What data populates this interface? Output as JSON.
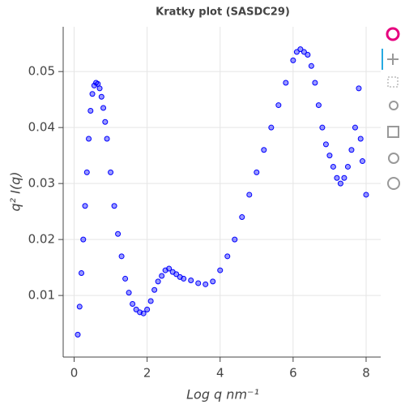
{
  "chart_data": {
    "type": "scatter",
    "title": "Kratky plot (SASDC29)",
    "x_label": "Log q nm⁻¹",
    "y_label": "q² I(q)",
    "color": "#0000ff",
    "grid": true,
    "xlim": [
      -0.3,
      8.4
    ],
    "ylim": [
      -0.001,
      0.058
    ],
    "xticks": [
      0,
      2,
      4,
      6,
      8
    ],
    "yticks": [
      0.01,
      0.02,
      0.03,
      0.04,
      0.05
    ],
    "x": [
      0.1,
      0.15,
      0.2,
      0.25,
      0.3,
      0.35,
      0.4,
      0.45,
      0.5,
      0.55,
      0.6,
      0.65,
      0.7,
      0.75,
      0.8,
      0.85,
      0.9,
      1.0,
      1.1,
      1.2,
      1.3,
      1.4,
      1.5,
      1.6,
      1.7,
      1.8,
      1.9,
      2.0,
      2.1,
      2.2,
      2.3,
      2.4,
      2.5,
      2.6,
      2.7,
      2.8,
      2.9,
      3.0,
      3.2,
      3.4,
      3.6,
      3.8,
      4.0,
      4.2,
      4.4,
      4.6,
      4.8,
      5.0,
      5.2,
      5.4,
      5.6,
      5.8,
      6.0,
      6.1,
      6.2,
      6.3,
      6.4,
      6.5,
      6.6,
      6.7,
      6.8,
      6.9,
      7.0,
      7.1,
      7.2,
      7.3,
      7.4,
      7.5,
      7.6,
      7.7,
      7.8,
      7.85,
      7.9,
      8.0
    ],
    "values": [
      0.003,
      0.008,
      0.014,
      0.02,
      0.026,
      0.032,
      0.038,
      0.043,
      0.046,
      0.0475,
      0.048,
      0.0478,
      0.047,
      0.0455,
      0.0435,
      0.041,
      0.038,
      0.032,
      0.026,
      0.021,
      0.017,
      0.013,
      0.0105,
      0.0085,
      0.0075,
      0.007,
      0.0068,
      0.0075,
      0.009,
      0.011,
      0.0125,
      0.0135,
      0.0145,
      0.0148,
      0.0142,
      0.0138,
      0.0133,
      0.013,
      0.0127,
      0.0122,
      0.012,
      0.0125,
      0.0145,
      0.017,
      0.02,
      0.024,
      0.028,
      0.032,
      0.036,
      0.04,
      0.044,
      0.048,
      0.052,
      0.0535,
      0.054,
      0.0535,
      0.053,
      0.051,
      0.048,
      0.044,
      0.04,
      0.037,
      0.035,
      0.033,
      0.031,
      0.03,
      0.031,
      0.033,
      0.036,
      0.04,
      0.047,
      0.038,
      0.034,
      0.028
    ]
  }
}
